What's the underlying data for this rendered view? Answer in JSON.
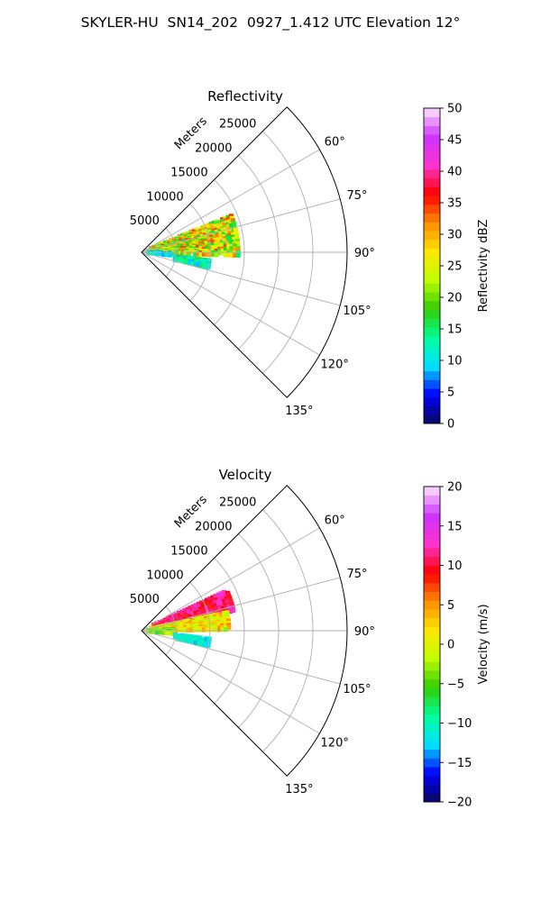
{
  "figure": {
    "title": "SKYLER-HU  SN14_202  0927_1.412 UTC Elevation 12°"
  },
  "chart_data": [
    {
      "type": "heatmap",
      "subtype": "polar-sector-radar",
      "title": "Reflectivity",
      "radial_label": "Meters",
      "radial_ticks": [
        "5000",
        "10000",
        "15000",
        "20000",
        "25000"
      ],
      "azimuth_ticks": [
        "60°",
        "75°",
        "90°",
        "105°",
        "120°",
        "135°"
      ],
      "azimuth_range_deg": [
        45,
        135
      ],
      "range_max_m": 30000,
      "grid": true,
      "colorbar": {
        "label": "Reflectivity dBZ",
        "min": 0,
        "max": 50,
        "ticks": [
          "0",
          "5",
          "10",
          "15",
          "20",
          "25",
          "30",
          "35",
          "40",
          "45",
          "50"
        ],
        "stops": [
          "#0a0a5c",
          "#0000ff",
          "#00e0ff",
          "#00ff9a",
          "#33cc00",
          "#bfff00",
          "#ffe600",
          "#ff8c00",
          "#ff0000",
          "#ff33cc",
          "#cc33ff",
          "#ffe6ff"
        ]
      },
      "echo_regions": [
        {
          "az": [
            68,
            92
          ],
          "range": [
            1500,
            14500
          ],
          "value_range": [
            15,
            35
          ],
          "level": 25
        },
        {
          "az": [
            84,
            95
          ],
          "range": [
            1000,
            5500
          ],
          "value_range": [
            15,
            30
          ],
          "level": 20
        },
        {
          "az": [
            90,
            97
          ],
          "range": [
            1000,
            4500
          ],
          "value_range": [
            5,
            15
          ],
          "level": 10
        },
        {
          "az": [
            97,
            104
          ],
          "range": [
            5000,
            10000
          ],
          "value_range": [
            8,
            18
          ],
          "level": 12
        }
      ]
    },
    {
      "type": "heatmap",
      "subtype": "polar-sector-radar",
      "title": "Velocity",
      "radial_label": "Meters",
      "radial_ticks": [
        "5000",
        "10000",
        "15000",
        "20000",
        "25000"
      ],
      "azimuth_ticks": [
        "60°",
        "75°",
        "90°",
        "105°",
        "120°",
        "135°"
      ],
      "azimuth_range_deg": [
        45,
        135
      ],
      "range_max_m": 30000,
      "grid": true,
      "colorbar": {
        "label": "Velocity (m/s)",
        "min": -20,
        "max": 20,
        "ticks": [
          "−20",
          "−15",
          "−10",
          "−5",
          "0",
          "5",
          "10",
          "15",
          "20"
        ],
        "stops": [
          "#0a0a5c",
          "#0000ff",
          "#00e0ff",
          "#00ff9a",
          "#33cc00",
          "#bfff00",
          "#ffe600",
          "#ff8c00",
          "#ff0000",
          "#ff33cc",
          "#cc33ff",
          "#ffe6ff"
        ]
      },
      "echo_regions": [
        {
          "az": [
            65,
            78
          ],
          "range": [
            2000,
            14000
          ],
          "value_range": [
            8,
            14
          ],
          "level": 11
        },
        {
          "az": [
            78,
            90
          ],
          "range": [
            1500,
            13000
          ],
          "value_range": [
            -3,
            6
          ],
          "level": 1
        },
        {
          "az": [
            88,
            96
          ],
          "range": [
            1000,
            5000
          ],
          "value_range": [
            -8,
            0
          ],
          "level": -4
        },
        {
          "az": [
            97,
            104
          ],
          "range": [
            5000,
            10000
          ],
          "value_range": [
            -14,
            -9
          ],
          "level": -11
        }
      ]
    }
  ]
}
